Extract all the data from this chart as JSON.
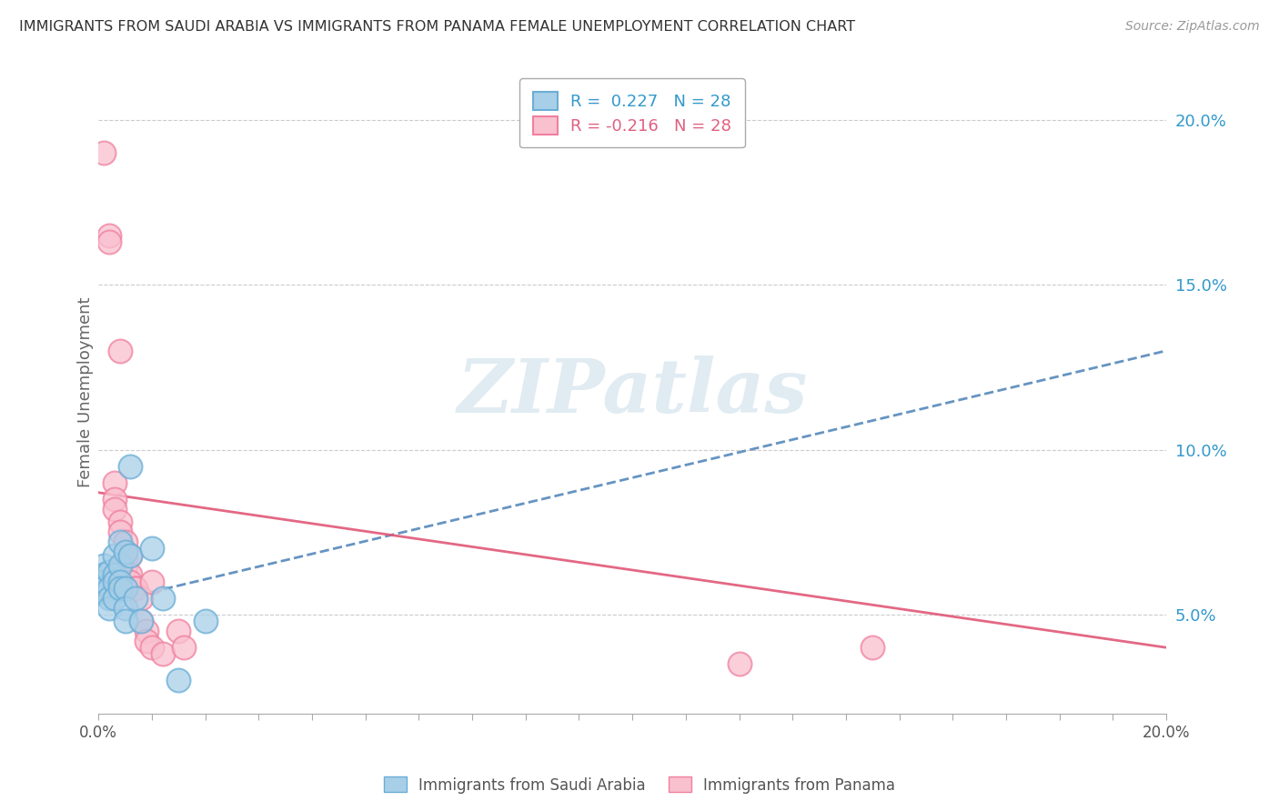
{
  "title": "IMMIGRANTS FROM SAUDI ARABIA VS IMMIGRANTS FROM PANAMA FEMALE UNEMPLOYMENT CORRELATION CHART",
  "source": "Source: ZipAtlas.com",
  "ylabel": "Female Unemployment",
  "xlim": [
    0,
    0.2
  ],
  "ylim": [
    0.02,
    0.215
  ],
  "yticks": [
    0.05,
    0.1,
    0.15,
    0.2
  ],
  "ytick_labels": [
    "5.0%",
    "10.0%",
    "15.0%",
    "20.0%"
  ],
  "R_saudi": 0.227,
  "N_saudi": 28,
  "R_panama": -0.216,
  "N_panama": 28,
  "blue_fill": "#a8cfe8",
  "blue_edge": "#6aaed6",
  "pink_fill": "#f9c0ce",
  "pink_edge": "#f080a0",
  "blue_line_color": "#5588bb",
  "pink_line_color": "#e05878",
  "watermark_color": "#c8dce8",
  "background_color": "#ffffff",
  "saudi_points": [
    [
      0.001,
      0.065
    ],
    [
      0.001,
      0.062
    ],
    [
      0.001,
      0.06
    ],
    [
      0.001,
      0.058
    ],
    [
      0.002,
      0.063
    ],
    [
      0.002,
      0.058
    ],
    [
      0.002,
      0.055
    ],
    [
      0.002,
      0.052
    ],
    [
      0.003,
      0.068
    ],
    [
      0.003,
      0.062
    ],
    [
      0.003,
      0.06
    ],
    [
      0.003,
      0.055
    ],
    [
      0.004,
      0.072
    ],
    [
      0.004,
      0.065
    ],
    [
      0.004,
      0.06
    ],
    [
      0.004,
      0.058
    ],
    [
      0.005,
      0.069
    ],
    [
      0.005,
      0.058
    ],
    [
      0.005,
      0.052
    ],
    [
      0.005,
      0.048
    ],
    [
      0.006,
      0.095
    ],
    [
      0.006,
      0.068
    ],
    [
      0.007,
      0.055
    ],
    [
      0.008,
      0.048
    ],
    [
      0.01,
      0.07
    ],
    [
      0.012,
      0.055
    ],
    [
      0.015,
      0.03
    ],
    [
      0.02,
      0.048
    ]
  ],
  "panama_points": [
    [
      0.001,
      0.19
    ],
    [
      0.002,
      0.165
    ],
    [
      0.002,
      0.163
    ],
    [
      0.003,
      0.09
    ],
    [
      0.003,
      0.085
    ],
    [
      0.003,
      0.082
    ],
    [
      0.004,
      0.13
    ],
    [
      0.004,
      0.078
    ],
    [
      0.004,
      0.075
    ],
    [
      0.005,
      0.072
    ],
    [
      0.005,
      0.068
    ],
    [
      0.005,
      0.065
    ],
    [
      0.006,
      0.068
    ],
    [
      0.006,
      0.062
    ],
    [
      0.006,
      0.06
    ],
    [
      0.007,
      0.058
    ],
    [
      0.007,
      0.058
    ],
    [
      0.008,
      0.055
    ],
    [
      0.008,
      0.048
    ],
    [
      0.009,
      0.045
    ],
    [
      0.009,
      0.042
    ],
    [
      0.01,
      0.06
    ],
    [
      0.01,
      0.04
    ],
    [
      0.012,
      0.038
    ],
    [
      0.015,
      0.045
    ],
    [
      0.016,
      0.04
    ],
    [
      0.12,
      0.035
    ],
    [
      0.145,
      0.04
    ]
  ],
  "saudi_line_x": [
    0.0,
    0.2
  ],
  "saudi_line_y": [
    0.053,
    0.13
  ],
  "panama_line_x": [
    0.0,
    0.2
  ],
  "panama_line_y": [
    0.087,
    0.04
  ]
}
